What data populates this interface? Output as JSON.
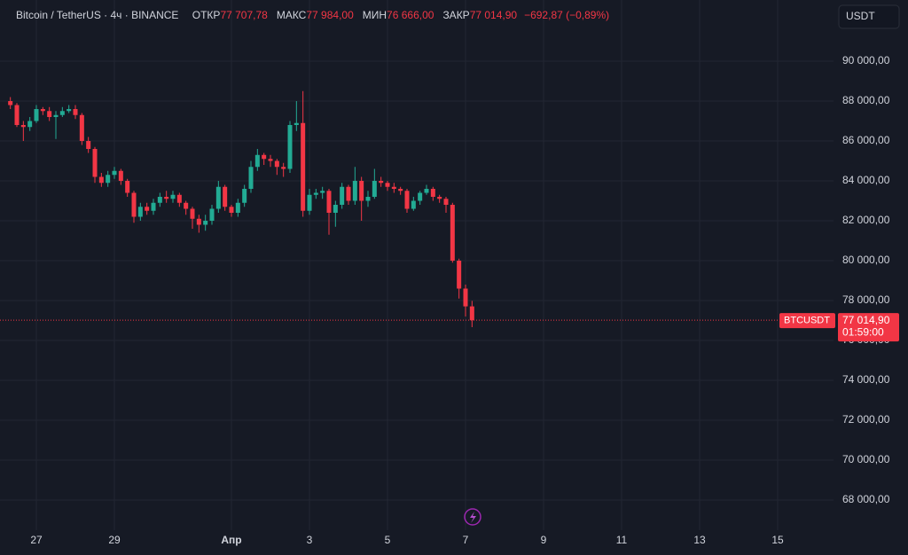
{
  "chart_data": {
    "type": "candlestick",
    "title": "Bitcoin / TetherUS · 4ч · BINANCE",
    "ohlc_header": [
      {
        "label": "ОТКР",
        "value": "77 707,78"
      },
      {
        "label": "МАКС",
        "value": "77 984,00"
      },
      {
        "label": "МИН",
        "value": "76 666,00"
      },
      {
        "label": "ЗАКР",
        "value": "77 014,90"
      }
    ],
    "change": "−692,87 (−0,89%)",
    "currency": "USDT",
    "symbol": "BTCUSDT",
    "last_price": {
      "value": 77014.9,
      "label": "77 014,90"
    },
    "countdown": "01:59:00",
    "up_color": "#22ab94",
    "down_color": "#f23645",
    "grid": true,
    "xlim": [
      26.068,
      47.432
    ],
    "ylim": [
      66489,
      93067
    ],
    "xticks": [
      27,
      29,
      {
        "value": 32,
        "label": "Апр"
      },
      {
        "value": 34,
        "label": "3"
      },
      {
        "value": 36,
        "label": "5"
      },
      {
        "value": 38,
        "label": "7"
      },
      {
        "value": 40,
        "label": "9"
      },
      {
        "value": 42,
        "label": "11"
      },
      {
        "value": 44,
        "label": "13"
      },
      {
        "value": 46,
        "label": "15"
      }
    ],
    "yticks": [
      {
        "value": 68000,
        "label": "68 000,00"
      },
      {
        "value": 70000,
        "label": "70 000,00"
      },
      {
        "value": 72000,
        "label": "72 000,00"
      },
      {
        "value": 74000,
        "label": "74 000,00"
      },
      {
        "value": 76000,
        "label": "76 000,00"
      },
      {
        "value": 78000,
        "label": "78 000,00"
      },
      {
        "value": 80000,
        "label": "80 000,00"
      },
      {
        "value": 82000,
        "label": "82 000,00"
      },
      {
        "value": 84000,
        "label": "84 000,00"
      },
      {
        "value": 86000,
        "label": "86 000,00"
      },
      {
        "value": 88000,
        "label": "88 000,00"
      },
      {
        "value": 90000,
        "label": "90 000,00"
      }
    ],
    "x": [
      26.3333,
      26.5,
      26.6667,
      26.8333,
      27,
      27.1667,
      27.3333,
      27.5,
      27.6667,
      27.8333,
      28,
      28.1667,
      28.3333,
      28.5,
      28.6667,
      28.8333,
      29,
      29.1667,
      29.3333,
      29.5,
      29.6667,
      29.8333,
      30,
      30.1667,
      30.3333,
      30.5,
      30.6667,
      30.8333,
      31,
      31.1667,
      31.3333,
      31.5,
      31.6667,
      31.8333,
      32,
      32.1667,
      32.3333,
      32.5,
      32.6667,
      32.8333,
      33,
      33.1667,
      33.3333,
      33.5,
      33.6667,
      33.8333,
      34,
      34.1667,
      34.3333,
      34.5,
      34.6667,
      34.8333,
      35,
      35.1667,
      35.3333,
      35.5,
      35.6667,
      35.8333,
      36,
      36.1667,
      36.3333,
      36.5,
      36.6667,
      36.8333,
      37,
      37.1667,
      37.3333,
      37.5,
      37.6667,
      37.8333,
      38,
      38.1667
    ],
    "open": [
      88000,
      87800,
      86800,
      86700,
      87000,
      87600,
      87500,
      87200,
      87300,
      87500,
      87600,
      87300,
      86000,
      85600,
      84200,
      83900,
      84300,
      84500,
      84000,
      83400,
      82200,
      82700,
      82500,
      82900,
      83200,
      83100,
      83300,
      82900,
      82600,
      82100,
      81800,
      82000,
      82600,
      83700,
      82700,
      82400,
      82900,
      83600,
      84700,
      85300,
      85100,
      85000,
      84700,
      84600,
      86800,
      86900,
      82500,
      83300,
      83400,
      83500,
      82400,
      82800,
      83700,
      83000,
      84000,
      83000,
      83200,
      84000,
      83900,
      83700,
      83600,
      83500,
      82600,
      83000,
      83400,
      83600,
      83200,
      83100,
      82800,
      80000,
      78600,
      77707.78
    ],
    "high": [
      88200,
      87900,
      87000,
      87200,
      87800,
      87700,
      87700,
      87500,
      87700,
      87800,
      87800,
      87400,
      86200,
      85700,
      84400,
      84500,
      84700,
      84600,
      84100,
      83500,
      82900,
      82900,
      83100,
      83400,
      83500,
      83500,
      83400,
      83000,
      82700,
      82300,
      82300,
      82800,
      84000,
      83800,
      82800,
      83100,
      83800,
      85000,
      85600,
      85400,
      85300,
      85100,
      84900,
      87000,
      88000,
      88500,
      83600,
      83600,
      83700,
      83600,
      83000,
      83900,
      83800,
      84700,
      84200,
      83500,
      84600,
      84200,
      84000,
      83900,
      83700,
      83600,
      83200,
      83500,
      83800,
      83700,
      83300,
      83200,
      82900,
      80100,
      78800,
      77984
    ],
    "low": [
      87600,
      86700,
      86000,
      86500,
      86900,
      87300,
      87000,
      86100,
      87200,
      87400,
      87100,
      85800,
      85400,
      83900,
      83700,
      83700,
      84100,
      83800,
      83200,
      81900,
      82000,
      82300,
      82300,
      82700,
      82900,
      82900,
      82700,
      82300,
      81600,
      81400,
      81500,
      81800,
      82400,
      82500,
      82200,
      82200,
      82700,
      83400,
      84500,
      84800,
      84700,
      84300,
      84200,
      84400,
      86500,
      82200,
      82300,
      83100,
      83100,
      81300,
      81700,
      82600,
      82800,
      82800,
      82000,
      82700,
      83100,
      83700,
      83500,
      83400,
      83300,
      82400,
      82500,
      82800,
      83300,
      83000,
      82900,
      82400,
      79900,
      78100,
      77200,
      76666
    ],
    "close": [
      87800,
      86800,
      86700,
      87000,
      87600,
      87500,
      87200,
      87300,
      87500,
      87600,
      87300,
      86000,
      85600,
      84200,
      83900,
      84300,
      84500,
      84000,
      83400,
      82200,
      82700,
      82500,
      82900,
      83200,
      83100,
      83300,
      82900,
      82600,
      82100,
      81800,
      82000,
      82600,
      83700,
      82700,
      82400,
      82900,
      83600,
      84700,
      85300,
      85100,
      85000,
      84700,
      84600,
      86800,
      86900,
      82500,
      83300,
      83400,
      83500,
      82400,
      82800,
      83700,
      83000,
      84000,
      83000,
      83200,
      84000,
      83900,
      83700,
      83600,
      83500,
      82600,
      83000,
      83400,
      83600,
      83200,
      83100,
      82800,
      80000,
      78600,
      77707.78,
      77014.9
    ]
  }
}
